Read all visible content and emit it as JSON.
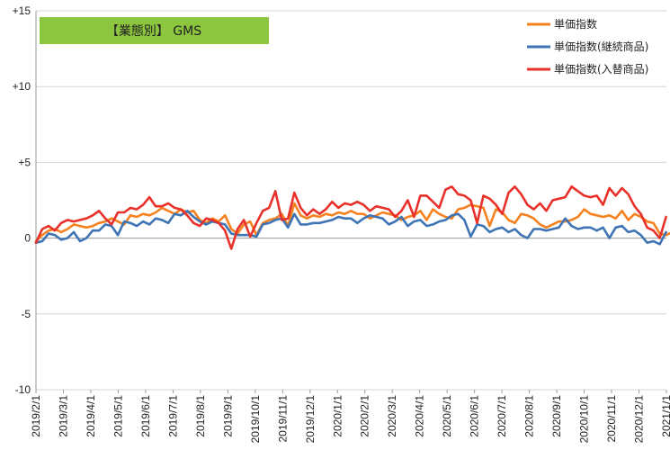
{
  "chart_data": {
    "type": "line",
    "title": "【業態別】 GMS",
    "title_bg": "#8cc63f",
    "ylim": [
      -10,
      15
    ],
    "yticks": [
      {
        "value": 15,
        "label": "+15"
      },
      {
        "value": 10,
        "label": "+10"
      },
      {
        "value": 5,
        "label": "+5"
      },
      {
        "value": 0,
        "label": "0"
      },
      {
        "value": -5,
        "label": "-5"
      },
      {
        "value": -10,
        "label": "-10"
      }
    ],
    "xticks": [
      "2019/2/1",
      "2019/3/1",
      "2019/4/1",
      "2019/5/1",
      "2019/6/1",
      "2019/7/1",
      "2019/8/1",
      "2019/9/1",
      "2019/10/1",
      "2019/11/1",
      "2019/12/1",
      "2020/1/1",
      "2020/2/1",
      "2020/3/1",
      "2020/4/1",
      "2020/5/1",
      "2020/6/1",
      "2020/7/1",
      "2020/8/1",
      "2020/9/1",
      "2020/10/1",
      "2020/11/1",
      "2020/12/1",
      "2021/1/1"
    ],
    "points_per_month": 4.35,
    "grid": "horizontal",
    "legend_position": "top-right",
    "series": [
      {
        "name": "単価指数",
        "color": "#f58220",
        "values": [
          -0.2,
          0.2,
          0.5,
          0.6,
          0.4,
          0.6,
          0.9,
          0.8,
          0.7,
          0.8,
          1.0,
          1.1,
          1.3,
          1.1,
          0.9,
          1.5,
          1.4,
          1.6,
          1.5,
          1.7,
          2.0,
          1.8,
          1.6,
          1.9,
          1.7,
          1.8,
          1.2,
          1.0,
          1.3,
          1.1,
          1.5,
          0.6,
          0.3,
          0.9,
          1.1,
          0.2,
          1.0,
          1.2,
          1.3,
          1.6,
          0.8,
          2.3,
          1.5,
          1.3,
          1.5,
          1.4,
          1.6,
          1.5,
          1.7,
          1.6,
          1.8,
          1.6,
          1.6,
          1.3,
          1.5,
          1.7,
          1.6,
          1.5,
          1.2,
          1.4,
          1.5,
          1.8,
          1.2,
          1.9,
          1.6,
          1.4,
          1.3,
          1.9,
          2.0,
          2.2,
          2.1,
          2.0,
          0.8,
          1.9,
          1.7,
          1.2,
          1.0,
          1.6,
          1.5,
          1.3,
          0.9,
          0.7,
          0.9,
          1.1,
          1.1,
          1.2,
          1.4,
          1.9,
          1.6,
          1.5,
          1.4,
          1.5,
          1.3,
          1.8,
          1.2,
          1.6,
          1.4,
          1.1,
          1.0,
          0.3,
          0.2,
          0.4,
          0.5
        ]
      },
      {
        "name": "単価指数(継続商品)",
        "color": "#3f74b5",
        "values": [
          -0.3,
          -0.2,
          0.3,
          0.2,
          -0.1,
          0.0,
          0.4,
          -0.2,
          0.0,
          0.5,
          0.5,
          0.9,
          0.8,
          0.2,
          1.1,
          1.0,
          0.8,
          1.1,
          0.9,
          1.3,
          1.2,
          1.0,
          1.6,
          1.5,
          1.8,
          1.4,
          1.1,
          0.9,
          1.1,
          1.0,
          0.9,
          0.3,
          0.2,
          0.2,
          0.2,
          0.1,
          0.9,
          1.0,
          1.2,
          1.3,
          0.7,
          1.6,
          0.9,
          0.9,
          1.0,
          1.0,
          1.1,
          1.2,
          1.4,
          1.3,
          1.3,
          1.0,
          1.3,
          1.5,
          1.4,
          1.3,
          0.9,
          1.1,
          1.4,
          0.8,
          1.1,
          1.2,
          0.8,
          0.9,
          1.1,
          1.2,
          1.5,
          1.6,
          1.2,
          0.1,
          0.9,
          0.8,
          0.4,
          0.6,
          0.7,
          0.4,
          0.6,
          0.2,
          0.0,
          0.6,
          0.6,
          0.5,
          0.6,
          0.7,
          1.3,
          0.8,
          0.6,
          0.7,
          0.7,
          0.5,
          0.7,
          0.0,
          0.7,
          0.8,
          0.4,
          0.5,
          0.2,
          -0.3,
          -0.2,
          -0.4,
          0.4
        ]
      },
      {
        "name": "単価指数(入替商品)",
        "color": "#e8312a",
        "values": [
          -0.3,
          0.6,
          0.8,
          0.5,
          1.0,
          1.2,
          1.1,
          1.2,
          1.3,
          1.5,
          1.8,
          1.3,
          0.9,
          1.7,
          1.7,
          2.0,
          1.9,
          2.2,
          2.7,
          2.1,
          2.1,
          2.3,
          2.0,
          1.9,
          1.5,
          1.0,
          0.8,
          1.3,
          1.2,
          1.0,
          0.5,
          -0.7,
          0.6,
          1.2,
          0.1,
          1.0,
          1.8,
          2.0,
          3.1,
          1.2,
          1.3,
          3.0,
          2.0,
          1.5,
          1.9,
          1.6,
          1.9,
          2.4,
          2.0,
          2.3,
          2.2,
          2.4,
          2.2,
          1.8,
          2.1,
          2.0,
          1.9,
          1.4,
          1.8,
          2.5,
          1.4,
          2.8,
          2.8,
          2.4,
          2.0,
          3.2,
          3.4,
          2.9,
          2.8,
          2.5,
          1.0,
          2.8,
          2.6,
          2.2,
          1.6,
          3.0,
          3.4,
          2.9,
          2.2,
          1.9,
          2.3,
          1.8,
          2.5,
          2.6,
          2.7,
          3.4,
          3.1,
          2.8,
          2.7,
          2.8,
          2.2,
          3.3,
          2.8,
          3.3,
          2.9,
          2.1,
          1.6,
          0.7,
          0.5,
          0.0,
          1.4
        ]
      }
    ]
  }
}
